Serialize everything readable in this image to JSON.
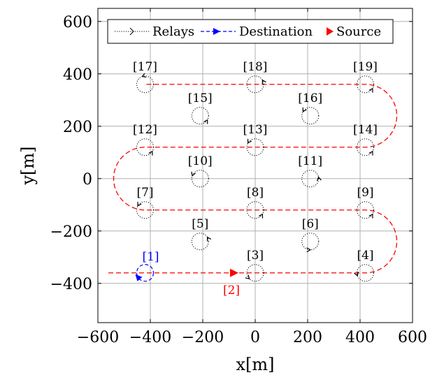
{
  "chart_data": {
    "type": "scatter",
    "xlabel": "x[m]",
    "ylabel": "y[m]",
    "xlim": [
      -600,
      600
    ],
    "ylim": [
      -550,
      650
    ],
    "xticks": [
      -600,
      -400,
      -200,
      0,
      200,
      400,
      600
    ],
    "yticks": [
      -400,
      -200,
      0,
      200,
      400,
      600
    ],
    "grid": true,
    "legend": {
      "placement": "top",
      "entries": [
        {
          "label": "Relays",
          "style": "dotted",
          "color": "#000000"
        },
        {
          "label": "Destination",
          "style": "dashed",
          "color": "#0000ff"
        },
        {
          "label": "Source",
          "style": "triangle",
          "color": "#ff0000"
        }
      ]
    },
    "relays": [
      {
        "label": "[3]",
        "x": 0,
        "y": -360,
        "arrow_angle": 225
      },
      {
        "label": "[4]",
        "x": 420,
        "y": -360,
        "arrow_angle": 200
      },
      {
        "label": "[5]",
        "x": -210,
        "y": -240,
        "arrow_angle": 30
      },
      {
        "label": "[6]",
        "x": 210,
        "y": -240,
        "arrow_angle": 270
      },
      {
        "label": "[7]",
        "x": -420,
        "y": -120,
        "arrow_angle": 150
      },
      {
        "label": "[8]",
        "x": 0,
        "y": -120,
        "arrow_angle": 330
      },
      {
        "label": "[9]",
        "x": 420,
        "y": -120,
        "arrow_angle": 330
      },
      {
        "label": "[10]",
        "x": -210,
        "y": 0,
        "arrow_angle": 160
      },
      {
        "label": "[11]",
        "x": 210,
        "y": 0,
        "arrow_angle": 10
      },
      {
        "label": "[12]",
        "x": -420,
        "y": 120,
        "arrow_angle": 330
      },
      {
        "label": "[13]",
        "x": 0,
        "y": 120,
        "arrow_angle": 150
      },
      {
        "label": "[14]",
        "x": 420,
        "y": 120,
        "arrow_angle": 330
      },
      {
        "label": "[15]",
        "x": -210,
        "y": 240,
        "arrow_angle": 330
      },
      {
        "label": "[16]",
        "x": 210,
        "y": 240,
        "arrow_angle": 150
      },
      {
        "label": "[17]",
        "x": -420,
        "y": 360,
        "arrow_angle": 110
      },
      {
        "label": "[18]",
        "x": 0,
        "y": 360,
        "arrow_angle": 30
      },
      {
        "label": "[19]",
        "x": 420,
        "y": 360,
        "arrow_angle": 330
      }
    ],
    "destination": {
      "label": "[1]",
      "x": -420,
      "y": -360,
      "color": "#0000ff"
    },
    "source": {
      "label": "[2]",
      "x": -80,
      "y": -360,
      "color": "#ff0000"
    },
    "path": {
      "color": "#ff0000",
      "style": "dashed",
      "points": [
        [
          -560,
          -360
        ],
        [
          420,
          -360
        ],
        [
          420,
          -120
        ],
        [
          -420,
          -120
        ],
        [
          -420,
          120
        ],
        [
          420,
          120
        ],
        [
          420,
          360
        ],
        [
          -420,
          360
        ]
      ]
    }
  }
}
